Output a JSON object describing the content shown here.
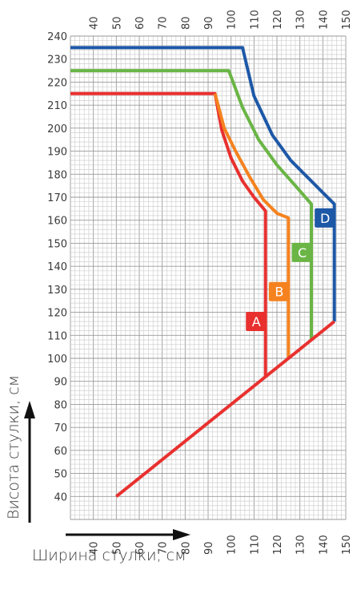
{
  "chart_data": {
    "type": "line",
    "xlabel": "Ширина стулки, см",
    "ylabel": "Висота стулки, см",
    "xlim": [
      30,
      150
    ],
    "ylim": [
      30,
      240
    ],
    "xticks": [
      40,
      50,
      60,
      70,
      80,
      90,
      100,
      110,
      120,
      130,
      140,
      150
    ],
    "yticks": [
      40,
      50,
      60,
      70,
      80,
      90,
      100,
      110,
      120,
      130,
      140,
      150,
      160,
      170,
      180,
      190,
      200,
      210,
      220,
      230,
      240
    ],
    "grid": true,
    "series": [
      {
        "name": "A",
        "color": "#e8312f",
        "x": [
          30,
          93,
          96,
          100,
          105,
          110,
          115,
          115
        ],
        "y": [
          215,
          215,
          199,
          187,
          177,
          170,
          164,
          92
        ]
      },
      {
        "name": "B",
        "color": "#f5821f",
        "x": [
          93,
          97,
          102,
          108,
          114,
          120,
          125,
          125
        ],
        "y": [
          215,
          200,
          190,
          179,
          169,
          163,
          161,
          100
        ]
      },
      {
        "name": "C",
        "color": "#6ab545",
        "x": [
          30,
          99,
          105,
          112,
          120,
          128,
          135,
          135
        ],
        "y": [
          225,
          225,
          209,
          195,
          184,
          175,
          167,
          108
        ]
      },
      {
        "name": "D",
        "color": "#1d58a7",
        "x": [
          30,
          105,
          110,
          118,
          126,
          134,
          140,
          145,
          145
        ],
        "y": [
          235,
          235,
          214,
          197,
          186,
          178,
          172,
          167,
          116
        ]
      },
      {
        "name": "",
        "color": "#e8312f",
        "x": [
          50,
          145
        ],
        "y": [
          40,
          116
        ]
      }
    ],
    "labels": [
      {
        "text": "A",
        "color": "#e8312f",
        "x": 111,
        "y": 116
      },
      {
        "text": "B",
        "color": "#f5821f",
        "x": 121,
        "y": 129
      },
      {
        "text": "C",
        "color": "#6ab545",
        "x": 131,
        "y": 146
      },
      {
        "text": "D",
        "color": "#1d58a7",
        "x": 141,
        "y": 161
      }
    ]
  }
}
